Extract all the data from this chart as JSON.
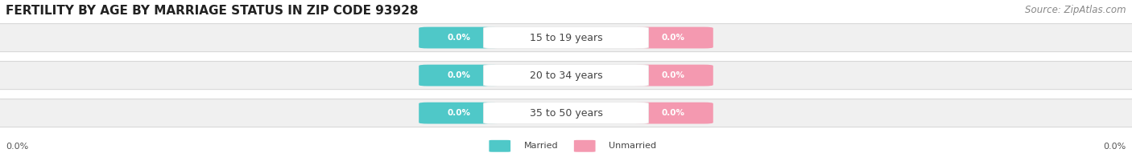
{
  "title": "FERTILITY BY AGE BY MARRIAGE STATUS IN ZIP CODE 93928",
  "source": "Source: ZipAtlas.com",
  "categories": [
    "15 to 19 years",
    "20 to 34 years",
    "35 to 50 years"
  ],
  "married_values": [
    "0.0%",
    "0.0%",
    "0.0%"
  ],
  "unmarried_values": [
    "0.0%",
    "0.0%",
    "0.0%"
  ],
  "married_color": "#4fc8c8",
  "unmarried_color": "#f499b0",
  "bar_bg_color": "#f0f0f0",
  "bar_border_color": "#e0e0e0",
  "label_pill_color": "#ffffff",
  "left_axis_label": "0.0%",
  "right_axis_label": "0.0%",
  "legend_married": "Married",
  "legend_unmarried": "Unmarried",
  "title_fontsize": 11,
  "source_fontsize": 8.5,
  "label_fontsize": 8,
  "pill_fontsize": 7.5,
  "cat_fontsize": 9,
  "background_color": "#ffffff"
}
